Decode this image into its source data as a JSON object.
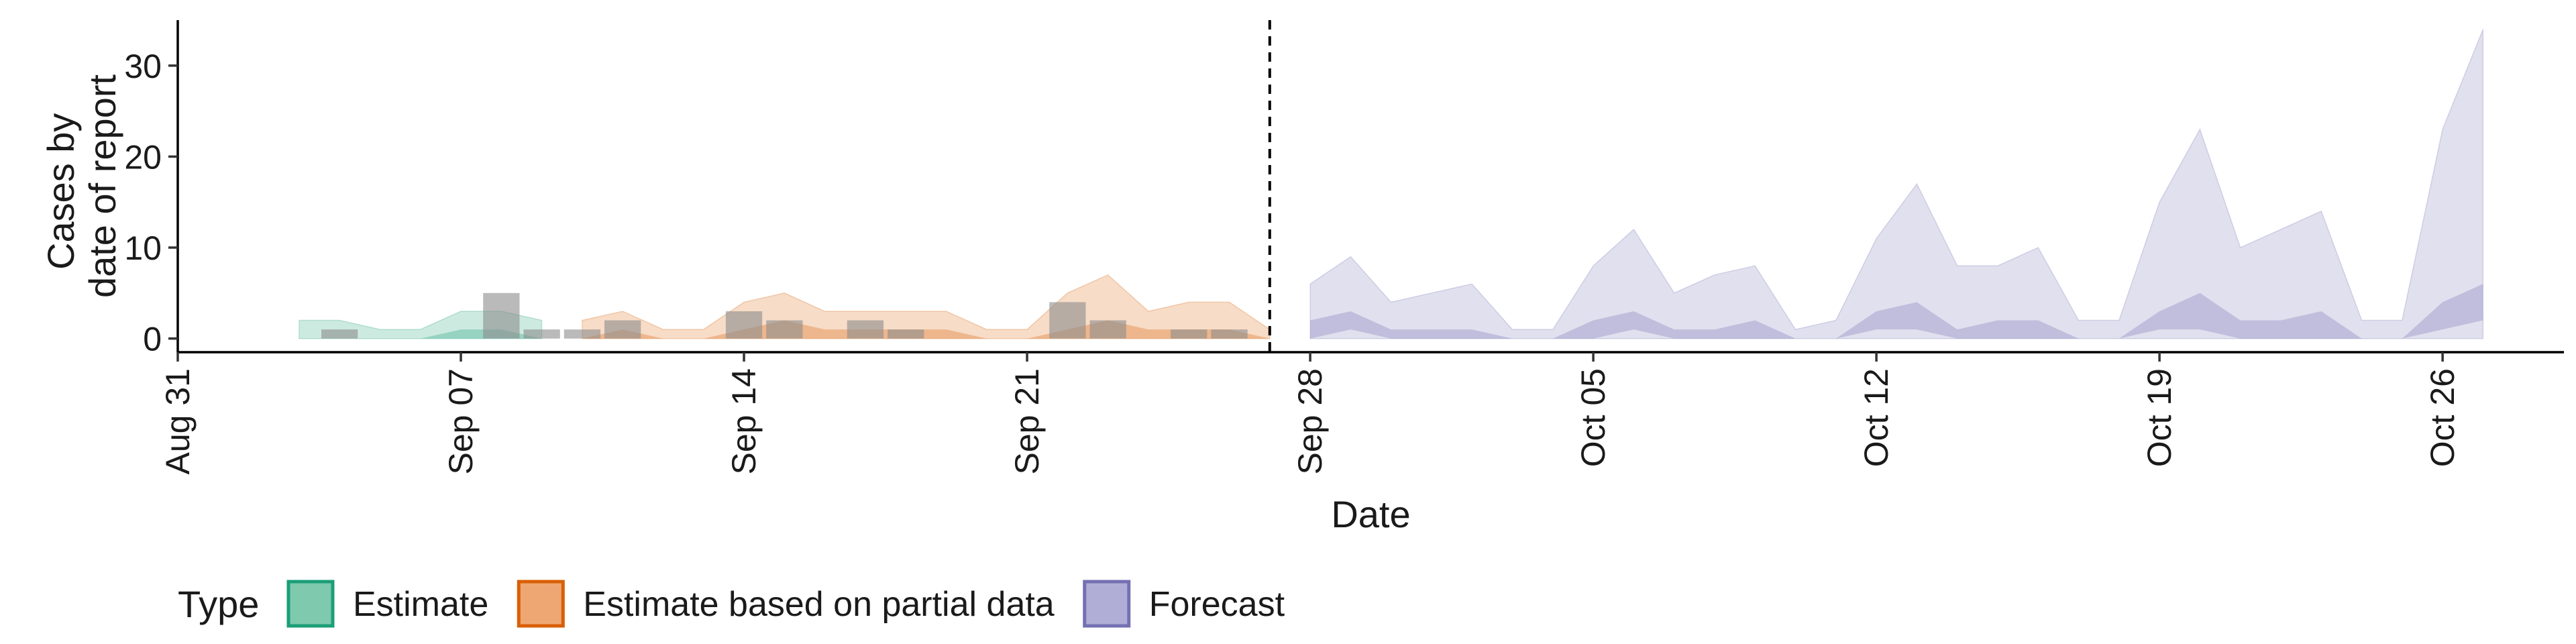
{
  "chart_data": {
    "type": "area",
    "xlabel": "Date",
    "ylabel_lines": [
      "Cases by",
      "date of report"
    ],
    "x_ticks": [
      "Aug 31",
      "Sep 07",
      "Sep 14",
      "Sep 21",
      "Sep 28",
      "Oct 05",
      "Oct 12",
      "Oct 19",
      "Oct 26"
    ],
    "x_tick_dates": [
      "2020-08-31",
      "2020-09-07",
      "2020-09-14",
      "2020-09-21",
      "2020-09-28",
      "2020-10-05",
      "2020-10-12",
      "2020-10-19",
      "2020-10-26"
    ],
    "y_ticks": [
      0,
      10,
      20,
      30
    ],
    "xlim": [
      "2020-08-31",
      "2020-10-29"
    ],
    "ylim": [
      -1.5,
      35
    ],
    "forecast_line_date": "2020-09-27",
    "grid": false,
    "legend": {
      "position": "bottom",
      "title": "Type",
      "entries": [
        {
          "label": "Estimate",
          "fill": "#7fc9ae",
          "stroke": "#1b9e77"
        },
        {
          "label": "Estimate based on partial data",
          "fill": "#eea773",
          "stroke": "#d95f02"
        },
        {
          "label": "Forecast",
          "fill": "#b0aed6",
          "stroke": "#7570b3"
        }
      ]
    },
    "series": [
      {
        "name": "Estimate",
        "color": "#1b9e77",
        "x": [
          "2020-09-03",
          "2020-09-04",
          "2020-09-05",
          "2020-09-06",
          "2020-09-07",
          "2020-09-08",
          "2020-09-09"
        ],
        "upper_90": [
          2,
          2,
          1,
          1,
          3,
          3,
          2
        ],
        "lower_90": [
          0,
          0,
          0,
          0,
          0,
          0,
          0
        ],
        "upper_50": [
          0,
          0,
          0,
          0,
          1,
          1,
          0
        ],
        "lower_50": [
          0,
          0,
          0,
          0,
          0,
          0,
          0
        ]
      },
      {
        "name": "Estimate based on partial data",
        "color": "#d95f02",
        "x": [
          "2020-09-10",
          "2020-09-11",
          "2020-09-12",
          "2020-09-13",
          "2020-09-14",
          "2020-09-15",
          "2020-09-16",
          "2020-09-17",
          "2020-09-18",
          "2020-09-19",
          "2020-09-20",
          "2020-09-21",
          "2020-09-22",
          "2020-09-23",
          "2020-09-24",
          "2020-09-25",
          "2020-09-26",
          "2020-09-27"
        ],
        "upper_90": [
          2,
          3,
          1,
          1,
          4,
          5,
          3,
          3,
          3,
          3,
          1,
          1,
          5,
          7,
          3,
          4,
          4,
          1
        ],
        "lower_90": [
          0,
          0,
          0,
          0,
          0,
          0,
          0,
          0,
          0,
          0,
          0,
          0,
          0,
          0,
          0,
          0,
          0,
          0
        ],
        "upper_50": [
          0,
          1,
          0,
          0,
          1,
          2,
          1,
          1,
          1,
          1,
          0,
          0,
          1,
          2,
          1,
          1,
          1,
          0
        ],
        "lower_50": [
          0,
          0,
          0,
          0,
          0,
          0,
          0,
          0,
          0,
          0,
          0,
          0,
          0,
          0,
          0,
          0,
          0,
          0
        ]
      },
      {
        "name": "Forecast",
        "color": "#7570b3",
        "x": [
          "2020-09-28",
          "2020-09-29",
          "2020-09-30",
          "2020-10-01",
          "2020-10-02",
          "2020-10-03",
          "2020-10-04",
          "2020-10-05",
          "2020-10-06",
          "2020-10-07",
          "2020-10-08",
          "2020-10-09",
          "2020-10-10",
          "2020-10-11",
          "2020-10-12",
          "2020-10-13",
          "2020-10-14",
          "2020-10-15",
          "2020-10-16",
          "2020-10-17",
          "2020-10-18",
          "2020-10-19",
          "2020-10-20",
          "2020-10-21",
          "2020-10-22",
          "2020-10-23",
          "2020-10-24",
          "2020-10-25",
          "2020-10-26",
          "2020-10-27"
        ],
        "upper_90": [
          6,
          9,
          4,
          5,
          6,
          1,
          1,
          8,
          12,
          5,
          7,
          8,
          1,
          2,
          11,
          17,
          8,
          8,
          10,
          2,
          2,
          15,
          23,
          10,
          12,
          14,
          2,
          2,
          23,
          34
        ],
        "lower_90": [
          0,
          0,
          0,
          0,
          0,
          0,
          0,
          0,
          0,
          0,
          0,
          0,
          0,
          0,
          0,
          0,
          0,
          0,
          0,
          0,
          0,
          0,
          0,
          0,
          0,
          0,
          0,
          0,
          0,
          0
        ],
        "upper_50": [
          2,
          3,
          1,
          1,
          1,
          0,
          0,
          2,
          3,
          1,
          1,
          2,
          0,
          0,
          3,
          4,
          1,
          2,
          2,
          0,
          0,
          3,
          5,
          2,
          2,
          3,
          0,
          0,
          4,
          6
        ],
        "lower_50": [
          0,
          1,
          0,
          0,
          0,
          0,
          0,
          0,
          1,
          0,
          0,
          0,
          0,
          0,
          1,
          1,
          0,
          0,
          0,
          0,
          0,
          1,
          1,
          0,
          0,
          0,
          0,
          0,
          1,
          2
        ]
      }
    ],
    "reported_cases": {
      "x": [
        "2020-09-04",
        "2020-09-08",
        "2020-09-09",
        "2020-09-10",
        "2020-09-11",
        "2020-09-14",
        "2020-09-15",
        "2020-09-17",
        "2020-09-18",
        "2020-09-22",
        "2020-09-23",
        "2020-09-25",
        "2020-09-26"
      ],
      "values": [
        1,
        5,
        1,
        1,
        2,
        3,
        2,
        2,
        1,
        4,
        2,
        1,
        1
      ],
      "color": "#8c8c8c"
    }
  }
}
